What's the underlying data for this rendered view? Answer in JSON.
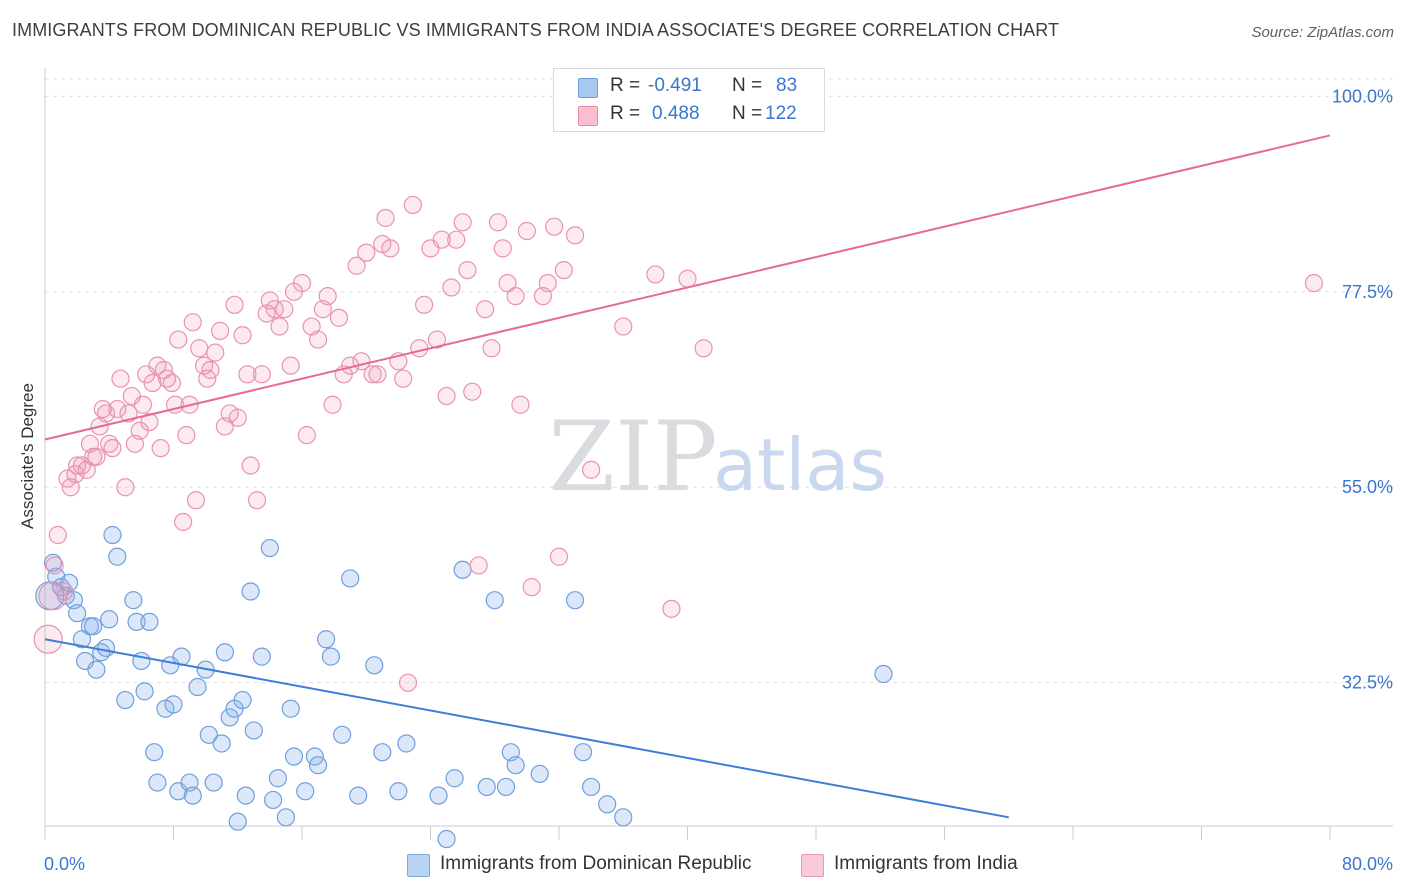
{
  "title": "IMMIGRANTS FROM DOMINICAN REPUBLIC VS IMMIGRANTS FROM INDIA ASSOCIATE'S DEGREE CORRELATION CHART",
  "source": "Source: ZipAtlas.com",
  "watermark": {
    "zip": "ZIP",
    "atlas": "atlas"
  },
  "legend": {
    "r_label": "R =",
    "n_label": "N =",
    "rows": [
      {
        "r": "-0.491",
        "n": "83",
        "color": "#a9c8f0",
        "border": "#6f9fdd"
      },
      {
        "r": "0.488",
        "n": "122",
        "color": "#f7bfd0",
        "border": "#e88aa8"
      }
    ]
  },
  "bottom_legend": [
    {
      "label": "Immigrants from Dominican Republic",
      "color": "#b9d3f4",
      "border": "#7ea7de"
    },
    {
      "label": "Immigrants from India",
      "color": "#f9cbd9",
      "border": "#e99ab3"
    }
  ],
  "chart_data": {
    "type": "scatter",
    "xlabel": "",
    "ylabel": "Associate's Degree",
    "xlim": [
      0,
      80
    ],
    "ylim": [
      16,
      102
    ],
    "x_tick_labels": [
      "0.0%",
      "80.0%"
    ],
    "y_ticks": [
      32.5,
      55.0,
      77.5,
      100.0
    ],
    "y_tick_labels": [
      "32.5%",
      "55.0%",
      "77.5%",
      "100.0%"
    ],
    "colors": {
      "blue": "#3d7fd6",
      "pink": "#e6699a",
      "tick_text": "#3a76d0"
    },
    "series": [
      {
        "name": "Immigrants from Dominican Republic",
        "color": "#6f9fdd",
        "fill": "rgba(140,180,235,0.30)",
        "trend": {
          "x": [
            0,
            60
          ],
          "y": [
            37.5,
            17.0
          ]
        },
        "points": [
          [
            0.5,
            46.3
          ],
          [
            0.7,
            44.7
          ],
          [
            1.0,
            43.5
          ],
          [
            1.3,
            42.5
          ],
          [
            1.5,
            44.0
          ],
          [
            1.8,
            42.0
          ],
          [
            2.0,
            40.5
          ],
          [
            2.3,
            37.5
          ],
          [
            2.5,
            35.0
          ],
          [
            2.8,
            39.0
          ],
          [
            3.0,
            39.0
          ],
          [
            3.2,
            34.0
          ],
          [
            3.5,
            36.0
          ],
          [
            3.8,
            36.5
          ],
          [
            4.0,
            39.8
          ],
          [
            4.2,
            49.5
          ],
          [
            4.5,
            47.0
          ],
          [
            5.0,
            30.5
          ],
          [
            5.5,
            42.0
          ],
          [
            5.7,
            39.5
          ],
          [
            6.0,
            35.0
          ],
          [
            6.2,
            31.5
          ],
          [
            6.5,
            39.5
          ],
          [
            6.8,
            24.5
          ],
          [
            7.0,
            21.0
          ],
          [
            7.5,
            29.5
          ],
          [
            7.8,
            34.5
          ],
          [
            8.0,
            30.0
          ],
          [
            8.3,
            20.0
          ],
          [
            8.5,
            35.5
          ],
          [
            9.0,
            21.0
          ],
          [
            9.2,
            19.5
          ],
          [
            9.5,
            32.0
          ],
          [
            10.0,
            34.0
          ],
          [
            10.2,
            26.5
          ],
          [
            10.5,
            21.0
          ],
          [
            11.0,
            25.5
          ],
          [
            11.2,
            36.0
          ],
          [
            11.5,
            28.5
          ],
          [
            11.8,
            29.5
          ],
          [
            12.0,
            16.5
          ],
          [
            12.3,
            30.5
          ],
          [
            12.5,
            19.5
          ],
          [
            12.8,
            43.0
          ],
          [
            13.0,
            27.0
          ],
          [
            13.5,
            35.5
          ],
          [
            14.0,
            48.0
          ],
          [
            14.2,
            19.0
          ],
          [
            14.5,
            21.5
          ],
          [
            15.0,
            17.0
          ],
          [
            15.3,
            29.5
          ],
          [
            15.5,
            24.0
          ],
          [
            16.2,
            20.0
          ],
          [
            16.8,
            24.0
          ],
          [
            17.0,
            23.0
          ],
          [
            17.5,
            37.5
          ],
          [
            17.8,
            35.5
          ],
          [
            18.5,
            26.5
          ],
          [
            19.0,
            44.5
          ],
          [
            19.5,
            19.5
          ],
          [
            20.5,
            34.5
          ],
          [
            21.0,
            24.5
          ],
          [
            22.0,
            20.0
          ],
          [
            22.5,
            25.5
          ],
          [
            24.5,
            19.5
          ],
          [
            25.0,
            14.5
          ],
          [
            25.5,
            21.5
          ],
          [
            26.0,
            45.5
          ],
          [
            27.5,
            20.5
          ],
          [
            28.0,
            42.0
          ],
          [
            28.7,
            20.5
          ],
          [
            29.0,
            24.5
          ],
          [
            29.3,
            23.0
          ],
          [
            30.8,
            22.0
          ],
          [
            33.0,
            42.0
          ],
          [
            33.5,
            24.5
          ],
          [
            34.0,
            20.5
          ],
          [
            35.0,
            18.5
          ],
          [
            36.0,
            17.0
          ],
          [
            52.2,
            33.5
          ]
        ],
        "big_points": [
          [
            0.3,
            42.5
          ]
        ]
      },
      {
        "name": "Immigrants from India",
        "color": "#e893b0",
        "fill": "rgba(240,150,180,0.20)",
        "trend": {
          "x": [
            0,
            80
          ],
          "y": [
            60.5,
            95.5
          ]
        },
        "points": [
          [
            0.6,
            46.0
          ],
          [
            0.8,
            49.5
          ],
          [
            1.2,
            43.0
          ],
          [
            1.4,
            56.0
          ],
          [
            1.6,
            55.0
          ],
          [
            1.9,
            56.5
          ],
          [
            2.0,
            57.5
          ],
          [
            2.3,
            57.5
          ],
          [
            2.6,
            57.0
          ],
          [
            2.8,
            60.0
          ],
          [
            3.0,
            58.5
          ],
          [
            3.2,
            58.5
          ],
          [
            3.4,
            62.0
          ],
          [
            3.6,
            64.0
          ],
          [
            3.8,
            63.5
          ],
          [
            4.0,
            60.0
          ],
          [
            4.2,
            59.5
          ],
          [
            4.5,
            64.0
          ],
          [
            4.7,
            67.5
          ],
          [
            5.0,
            55.0
          ],
          [
            5.2,
            63.5
          ],
          [
            5.4,
            65.5
          ],
          [
            5.6,
            60.0
          ],
          [
            5.9,
            61.5
          ],
          [
            6.1,
            64.5
          ],
          [
            6.3,
            68.0
          ],
          [
            6.5,
            62.5
          ],
          [
            6.7,
            67.0
          ],
          [
            7.0,
            69.0
          ],
          [
            7.2,
            59.5
          ],
          [
            7.4,
            68.5
          ],
          [
            7.6,
            67.5
          ],
          [
            7.9,
            67.0
          ],
          [
            8.1,
            64.5
          ],
          [
            8.3,
            72.0
          ],
          [
            8.6,
            51.0
          ],
          [
            8.8,
            61.0
          ],
          [
            9.0,
            64.5
          ],
          [
            9.2,
            74.0
          ],
          [
            9.4,
            53.5
          ],
          [
            9.6,
            71.0
          ],
          [
            9.9,
            69.0
          ],
          [
            10.1,
            67.5
          ],
          [
            10.3,
            68.5
          ],
          [
            10.6,
            70.5
          ],
          [
            10.9,
            73.0
          ],
          [
            11.2,
            62.0
          ],
          [
            11.5,
            63.5
          ],
          [
            11.8,
            76.0
          ],
          [
            12.0,
            63.0
          ],
          [
            12.3,
            72.5
          ],
          [
            12.6,
            68.0
          ],
          [
            12.8,
            57.5
          ],
          [
            13.2,
            53.5
          ],
          [
            13.5,
            68.0
          ],
          [
            13.8,
            75.0
          ],
          [
            14.0,
            76.5
          ],
          [
            14.3,
            75.5
          ],
          [
            14.6,
            73.5
          ],
          [
            14.9,
            75.5
          ],
          [
            15.3,
            69.0
          ],
          [
            15.5,
            77.5
          ],
          [
            16.0,
            78.5
          ],
          [
            16.3,
            61.0
          ],
          [
            16.6,
            73.5
          ],
          [
            17.0,
            72.0
          ],
          [
            17.3,
            75.5
          ],
          [
            17.6,
            77.0
          ],
          [
            17.9,
            64.5
          ],
          [
            18.3,
            74.5
          ],
          [
            18.6,
            68.0
          ],
          [
            19.0,
            69.0
          ],
          [
            19.4,
            80.5
          ],
          [
            19.7,
            69.5
          ],
          [
            20.0,
            82.0
          ],
          [
            20.4,
            68.0
          ],
          [
            20.7,
            68.0
          ],
          [
            21.0,
            83.0
          ],
          [
            21.2,
            86.0
          ],
          [
            21.5,
            82.5
          ],
          [
            22.0,
            69.5
          ],
          [
            22.3,
            67.5
          ],
          [
            22.6,
            32.5
          ],
          [
            22.9,
            87.5
          ],
          [
            23.3,
            71.0
          ],
          [
            23.6,
            76.0
          ],
          [
            24.0,
            82.5
          ],
          [
            24.4,
            72.0
          ],
          [
            24.7,
            83.5
          ],
          [
            25.0,
            65.5
          ],
          [
            25.3,
            78.0
          ],
          [
            25.6,
            83.5
          ],
          [
            26.0,
            85.5
          ],
          [
            26.3,
            80.0
          ],
          [
            26.6,
            66.0
          ],
          [
            27.0,
            46.0
          ],
          [
            27.4,
            75.5
          ],
          [
            27.8,
            71.0
          ],
          [
            28.2,
            85.5
          ],
          [
            28.5,
            82.5
          ],
          [
            28.8,
            78.5
          ],
          [
            29.3,
            77.0
          ],
          [
            29.6,
            64.5
          ],
          [
            30.0,
            84.5
          ],
          [
            30.3,
            43.5
          ],
          [
            31.0,
            77.0
          ],
          [
            31.3,
            78.5
          ],
          [
            31.7,
            85.0
          ],
          [
            32.0,
            47.0
          ],
          [
            32.3,
            80.0
          ],
          [
            33.0,
            84.0
          ],
          [
            34.0,
            57.0
          ],
          [
            36.0,
            73.5
          ],
          [
            38.0,
            79.5
          ],
          [
            39.0,
            41.0
          ],
          [
            40.0,
            79.0
          ],
          [
            41.0,
            71.0
          ],
          [
            79.0,
            78.5
          ]
        ],
        "big_points": [
          [
            0.2,
            37.5
          ],
          [
            0.5,
            42.5
          ]
        ]
      }
    ]
  }
}
